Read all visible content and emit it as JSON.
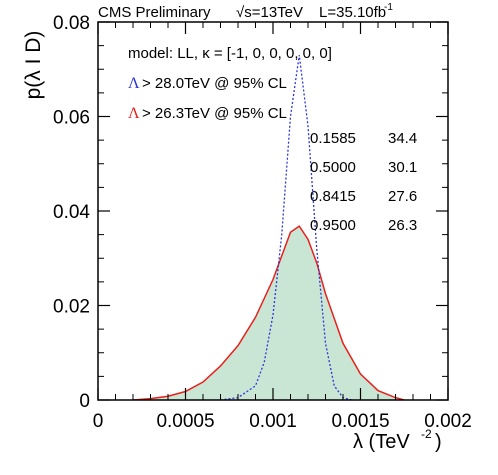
{
  "header": {
    "prelim": "CMS Preliminary",
    "energy": "√s=13TeV",
    "lumi_base": "L=35.10fb",
    "lumi_exp": "-1"
  },
  "axes": {
    "ylabel": "p(λ I D)",
    "xlabel_base": "λ (TeV",
    "xlabel_exp": "-2",
    "xlabel_close": ")"
  },
  "legend": {
    "model_text": "model: LL, κ = [-1, 0, 0, 0, 0, 0]",
    "blue_symbol": "Λ",
    "blue_text": "> 28.0TeV @ 95% CL",
    "red_symbol": "Λ",
    "red_text": "> 26.3TeV @ 95% CL"
  },
  "quantile_table": [
    {
      "prob": "0.1585",
      "lambda": "34.4"
    },
    {
      "prob": "0.5000",
      "lambda": "30.1"
    },
    {
      "prob": "0.8415",
      "lambda": "27.6"
    },
    {
      "prob": "0.9500",
      "lambda": "26.3"
    }
  ],
  "colors": {
    "posterior_line": "#e8201c",
    "posterior_fill": "#c9e6d4",
    "blue_dotted": "#2b35d6",
    "axis": "#000000"
  },
  "chart_data": {
    "type": "area",
    "xlim": [
      0,
      0.002
    ],
    "ylim": [
      0,
      0.08
    ],
    "xticks": [
      0,
      0.0005,
      0.001,
      0.0015,
      0.002
    ],
    "xtick_labels": [
      "0",
      "0.0005",
      "0.001",
      "0.0015",
      "0.002"
    ],
    "yticks": [
      0,
      0.02,
      0.04,
      0.06,
      0.08
    ],
    "ytick_labels": [
      "0",
      "0.02",
      "0.04",
      "0.06",
      "0.08"
    ],
    "series": [
      {
        "style": "filled-solid",
        "x": [
          0.0002,
          0.0003,
          0.0004,
          0.0005,
          0.0006,
          0.0007,
          0.0008,
          0.0009,
          0.001,
          0.00105,
          0.0011,
          0.00115,
          0.0012,
          0.00125,
          0.0013,
          0.0014,
          0.0015,
          0.0016,
          0.0017,
          0.00175
        ],
        "y": [
          0.0,
          0.0003,
          0.0008,
          0.0018,
          0.0038,
          0.0072,
          0.0115,
          0.0175,
          0.0255,
          0.0305,
          0.0355,
          0.0368,
          0.034,
          0.029,
          0.0225,
          0.012,
          0.0055,
          0.002,
          0.0005,
          0.0
        ]
      },
      {
        "style": "dotted",
        "x": [
          0.0007,
          0.0008,
          0.0009,
          0.00095,
          0.001,
          0.00105,
          0.0011,
          0.00115,
          0.0012,
          0.00125,
          0.0013,
          0.00135,
          0.0014,
          0.00145
        ],
        "y": [
          0.0,
          0.0005,
          0.003,
          0.008,
          0.018,
          0.035,
          0.06,
          0.073,
          0.058,
          0.032,
          0.012,
          0.003,
          0.0005,
          0.0
        ]
      }
    ]
  }
}
